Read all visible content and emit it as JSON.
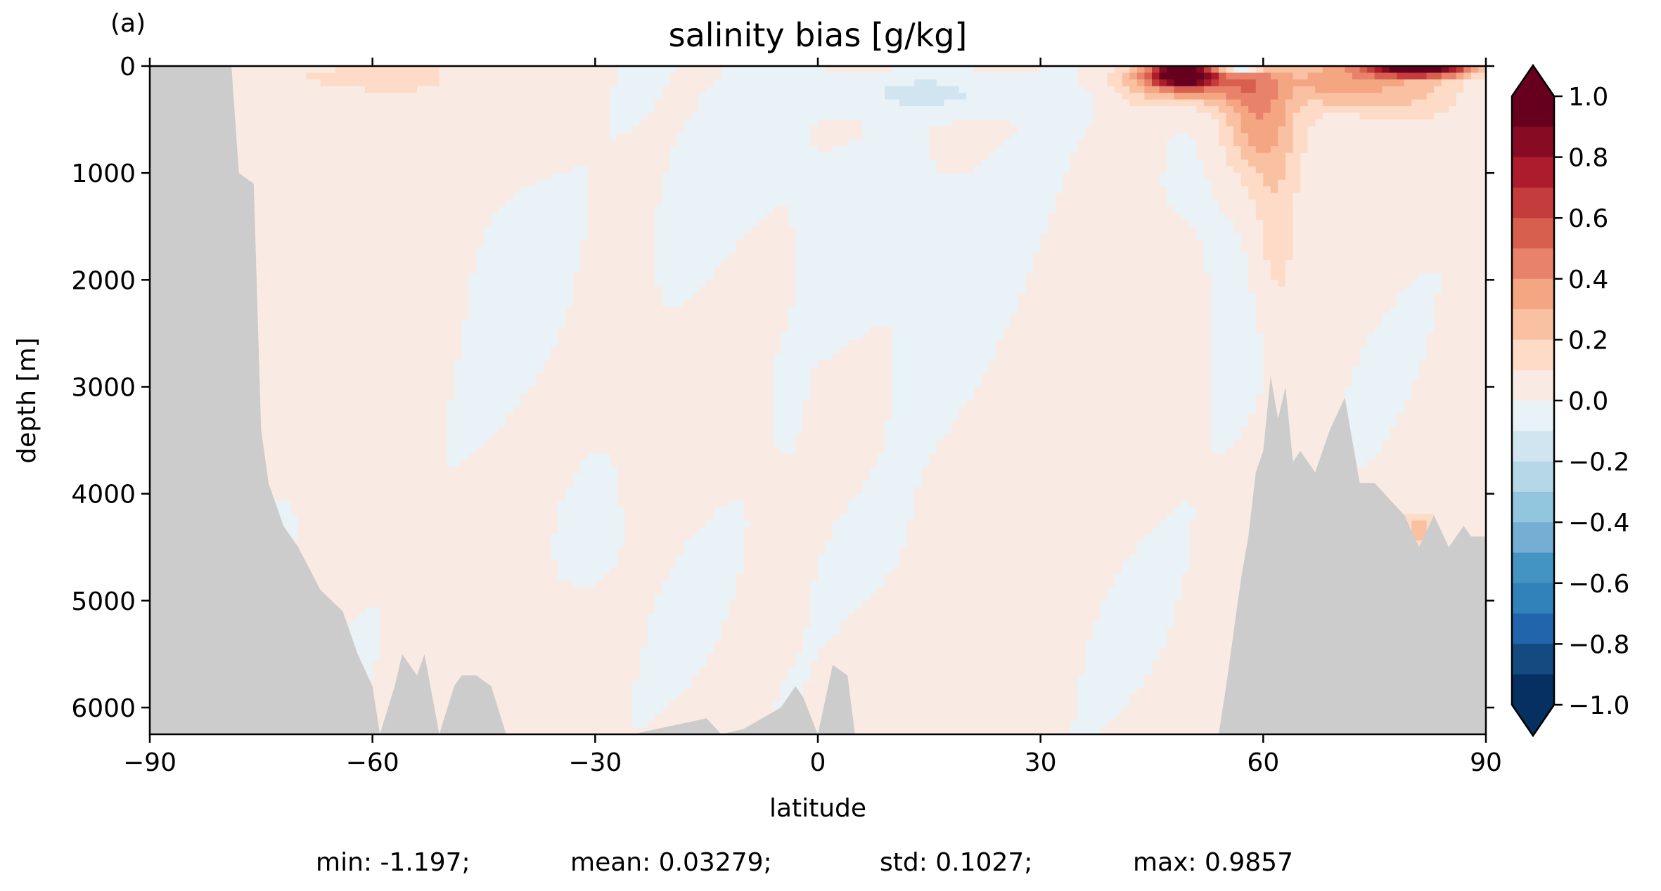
{
  "panel_label": "(a)",
  "chart_data": {
    "type": "heatmap",
    "title": "salinity bias [g/kg]",
    "xlabel": "latitude",
    "ylabel": "depth [m]",
    "xlim": [
      -90,
      90
    ],
    "ylim": [
      6250,
      0
    ],
    "y_inverted": true,
    "x_ticks": [
      -90,
      -60,
      -30,
      0,
      30,
      60,
      90
    ],
    "x_tick_labels": [
      "−90",
      "−60",
      "−30",
      "0",
      "30",
      "60",
      "90"
    ],
    "y_ticks": [
      0,
      1000,
      2000,
      3000,
      4000,
      5000,
      6000
    ],
    "y_tick_labels": [
      "0",
      "1000",
      "2000",
      "3000",
      "4000",
      "5000",
      "6000"
    ],
    "colorbar": {
      "vmin": -1.0,
      "vmax": 1.0,
      "levels": 20,
      "extend": "both",
      "ticks": [
        1.0,
        0.8,
        0.6,
        0.4,
        0.2,
        0.0,
        -0.2,
        -0.4,
        -0.6,
        -0.8,
        -1.0
      ],
      "tick_labels": [
        "1.0",
        "0.8",
        "0.6",
        "0.4",
        "0.2",
        "0.0",
        "−0.2",
        "−0.4",
        "−0.6",
        "−0.8",
        "−1.0"
      ],
      "colors": [
        "#67001f",
        "#870b23",
        "#ac1c2d",
        "#c43c3c",
        "#d6604d",
        "#e8826a",
        "#f4a582",
        "#f9c0a2",
        "#fddbc7",
        "#f9ebe3",
        "#e9f2f6",
        "#d1e5f0",
        "#b6d7e8",
        "#92c5de",
        "#74afd3",
        "#4393c3",
        "#3181bb",
        "#2166ac",
        "#134a80",
        "#053061"
      ],
      "under_color": "#053061",
      "over_color": "#67001f"
    },
    "land_color": "#cccccc",
    "bathymetry_bottom_depth_m": {
      "lat": [
        -90,
        -79,
        -78,
        -76,
        -75,
        -74,
        -72,
        -70,
        -67,
        -64,
        -62,
        -60,
        -59,
        -57,
        -56,
        -54,
        -53,
        -51,
        -49,
        -48,
        -46,
        -44,
        -42,
        -40,
        -38,
        -36,
        -25,
        -15,
        -13,
        -10,
        -5,
        -3,
        -2,
        0,
        2,
        4,
        5,
        10,
        20,
        30,
        40,
        50,
        54,
        55,
        56,
        57,
        58,
        59,
        60,
        61,
        62,
        63,
        64,
        65,
        67,
        69,
        71,
        72,
        73,
        75,
        79,
        81,
        83,
        85,
        86,
        87,
        88,
        90
      ],
      "depth": [
        0,
        0,
        1000,
        1100,
        3400,
        3900,
        4300,
        4500,
        4900,
        5100,
        5500,
        5800,
        6250,
        5800,
        5500,
        5700,
        5500,
        6250,
        5800,
        5700,
        5700,
        5800,
        6250,
        6250,
        6250,
        6250,
        6250,
        6100,
        6250,
        6200,
        6000,
        5800,
        5900,
        6250,
        5600,
        5700,
        6250,
        6250,
        6250,
        6250,
        6250,
        6250,
        6250,
        5800,
        5300,
        4800,
        4400,
        3800,
        3600,
        2900,
        3300,
        3000,
        3700,
        3600,
        3800,
        3400,
        3100,
        3500,
        3900,
        3900,
        4200,
        4500,
        4200,
        4500,
        4400,
        4300,
        4400,
        4400
      ]
    },
    "anomalies": [
      {
        "lat_center": -75,
        "depth_center": 900,
        "lat_half_width": 8,
        "depth_half_width": 700,
        "value": 0.08
      },
      {
        "lat_center": -62,
        "depth_center": 100,
        "lat_half_width": 12,
        "depth_half_width": 150,
        "value": 0.15
      },
      {
        "lat_center": -40,
        "depth_center": 1700,
        "lat_half_width": 7,
        "depth_half_width": 900,
        "value": -0.06
      },
      {
        "lat_center": -18,
        "depth_center": 1500,
        "lat_half_width": 8,
        "depth_half_width": 1000,
        "value": -0.05
      },
      {
        "lat_center": -4,
        "depth_center": 3100,
        "lat_half_width": 2,
        "depth_half_width": 500,
        "value": -0.07
      },
      {
        "lat_center": 0,
        "depth_center": 1300,
        "lat_half_width": 10,
        "depth_half_width": 1200,
        "value": -0.05
      },
      {
        "lat_center": 20,
        "depth_center": 1400,
        "lat_half_width": 12,
        "depth_half_width": 1100,
        "value": -0.06
      },
      {
        "lat_center": 15,
        "depth_center": 250,
        "lat_half_width": 15,
        "depth_half_width": 200,
        "value": -0.15
      },
      {
        "lat_center": 55,
        "depth_center": 2000,
        "lat_half_width": 5,
        "depth_half_width": 1200,
        "value": -0.07
      },
      {
        "lat_center": 50,
        "depth_center": 120,
        "lat_half_width": 9,
        "depth_half_width": 220,
        "value": 0.5
      },
      {
        "lat_center": 49,
        "depth_center": 80,
        "lat_half_width": 4,
        "depth_half_width": 100,
        "value": 0.85
      },
      {
        "lat_center": 59,
        "depth_center": 400,
        "lat_half_width": 5,
        "depth_half_width": 600,
        "value": 0.35
      },
      {
        "lat_center": 62,
        "depth_center": 1600,
        "lat_half_width": 3,
        "depth_half_width": 900,
        "value": 0.15
      },
      {
        "lat_center": 81,
        "depth_center": 30,
        "lat_half_width": 7,
        "depth_half_width": 70,
        "value": 1.0
      },
      {
        "lat_center": 77,
        "depth_center": 200,
        "lat_half_width": 8,
        "depth_half_width": 250,
        "value": 0.25
      },
      {
        "lat_center": 69,
        "depth_center": 150,
        "lat_half_width": 5,
        "depth_half_width": 200,
        "value": 0.2
      },
      {
        "lat_center": 81,
        "depth_center": 4350,
        "lat_half_width": 2,
        "depth_half_width": 150,
        "value": 0.25
      },
      {
        "lat_center": 57,
        "depth_center": 40,
        "lat_half_width": 3,
        "depth_half_width": 40,
        "value": -0.5
      },
      {
        "lat_center": 8,
        "depth_center": 4600,
        "lat_half_width": 10,
        "depth_half_width": 700,
        "value": -0.05
      },
      {
        "lat_center": -30,
        "depth_center": 4500,
        "lat_half_width": 6,
        "depth_half_width": 600,
        "value": -0.05
      }
    ],
    "stats": {
      "min": "min: -1.197;",
      "mean": "mean: 0.03279;",
      "std": "std: 0.1027;",
      "max": "max: 0.9857"
    }
  }
}
